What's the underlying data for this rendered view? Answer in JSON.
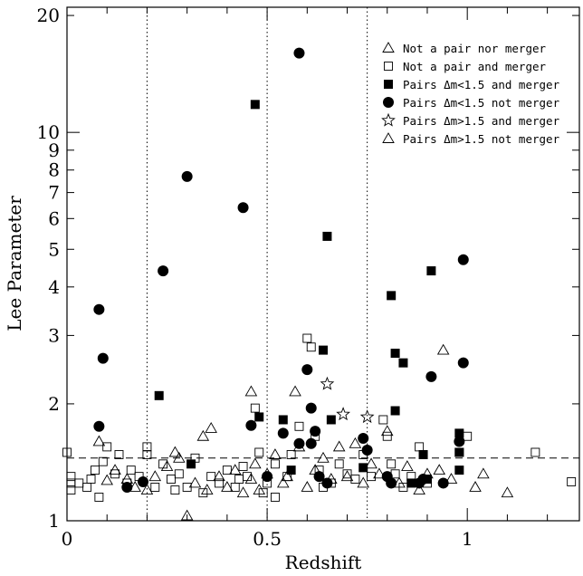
{
  "chart_data": {
    "type": "scatter",
    "xlabel": "Redshift",
    "ylabel": "Lee Parameter",
    "xlim": [
      0,
      1.28
    ],
    "ylim": [
      1,
      21
    ],
    "yscale": "log",
    "x_ticks": [
      {
        "value": 0,
        "label": "0"
      },
      {
        "value": 0.5,
        "label": "0.5"
      },
      {
        "value": 1,
        "label": "1"
      }
    ],
    "y_ticks": [
      {
        "value": 1,
        "label": "1"
      },
      {
        "value": 2,
        "label": "2"
      },
      {
        "value": 3,
        "label": "3"
      },
      {
        "value": 4,
        "label": "4"
      },
      {
        "value": 5,
        "label": "5"
      },
      {
        "value": 6,
        "label": "6"
      },
      {
        "value": 7,
        "label": "7"
      },
      {
        "value": 8,
        "label": "8"
      },
      {
        "value": 9,
        "label": "9"
      },
      {
        "value": 10,
        "label": "10"
      },
      {
        "value": 20,
        "label": "20"
      }
    ],
    "vertical_lines": [
      0.2,
      0.5,
      0.75
    ],
    "horizontal_line": 1.45,
    "legend_position": "top-right",
    "series": [
      {
        "name": "Not a pair nor merger",
        "marker": "triangle-open",
        "points": [
          [
            0.08,
            1.6
          ],
          [
            0.1,
            1.27
          ],
          [
            0.12,
            1.35
          ],
          [
            0.15,
            1.28
          ],
          [
            0.17,
            1.22
          ],
          [
            0.2,
            1.2
          ],
          [
            0.22,
            1.3
          ],
          [
            0.25,
            1.38
          ],
          [
            0.27,
            1.5
          ],
          [
            0.28,
            1.45
          ],
          [
            0.3,
            1.03
          ],
          [
            0.32,
            1.25
          ],
          [
            0.34,
            1.65
          ],
          [
            0.36,
            1.73
          ],
          [
            0.38,
            1.3
          ],
          [
            0.4,
            1.22
          ],
          [
            0.42,
            1.35
          ],
          [
            0.44,
            1.18
          ],
          [
            0.46,
            1.28
          ],
          [
            0.47,
            1.4
          ],
          [
            0.48,
            1.2
          ],
          [
            0.5,
            1.32
          ],
          [
            0.52,
            1.48
          ],
          [
            0.54,
            1.25
          ],
          [
            0.55,
            1.3
          ],
          [
            0.57,
            2.15
          ],
          [
            0.58,
            1.55
          ],
          [
            0.6,
            1.22
          ],
          [
            0.62,
            1.35
          ],
          [
            0.64,
            1.45
          ],
          [
            0.66,
            1.28
          ],
          [
            0.68,
            1.55
          ],
          [
            0.7,
            1.3
          ],
          [
            0.72,
            1.58
          ],
          [
            0.74,
            1.25
          ],
          [
            0.76,
            1.4
          ],
          [
            0.78,
            1.32
          ],
          [
            0.8,
            1.7
          ],
          [
            0.83,
            1.25
          ],
          [
            0.85,
            1.38
          ],
          [
            0.88,
            1.2
          ],
          [
            0.9,
            1.32
          ],
          [
            0.93,
            1.35
          ],
          [
            0.94,
            2.75
          ],
          [
            0.96,
            1.28
          ],
          [
            1.02,
            1.22
          ],
          [
            1.04,
            1.32
          ],
          [
            1.1,
            1.18
          ],
          [
            0.46,
            2.15
          ],
          [
            0.35,
            1.2
          ]
        ]
      },
      {
        "name": "Not a pair and merger",
        "marker": "square-open",
        "points": [
          [
            0.0,
            1.5
          ],
          [
            0.01,
            1.3
          ],
          [
            0.01,
            1.2
          ],
          [
            0.01,
            1.25
          ],
          [
            0.03,
            1.25
          ],
          [
            0.05,
            1.22
          ],
          [
            0.06,
            1.28
          ],
          [
            0.07,
            1.35
          ],
          [
            0.08,
            1.15
          ],
          [
            0.09,
            1.42
          ],
          [
            0.1,
            1.55
          ],
          [
            0.12,
            1.32
          ],
          [
            0.13,
            1.48
          ],
          [
            0.15,
            1.25
          ],
          [
            0.16,
            1.35
          ],
          [
            0.18,
            1.3
          ],
          [
            0.2,
            1.55
          ],
          [
            0.2,
            1.48
          ],
          [
            0.22,
            1.22
          ],
          [
            0.24,
            1.4
          ],
          [
            0.26,
            1.28
          ],
          [
            0.28,
            1.32
          ],
          [
            0.3,
            1.22
          ],
          [
            0.32,
            1.45
          ],
          [
            0.34,
            1.18
          ],
          [
            0.36,
            1.3
          ],
          [
            0.38,
            1.25
          ],
          [
            0.4,
            1.35
          ],
          [
            0.42,
            1.22
          ],
          [
            0.44,
            1.38
          ],
          [
            0.45,
            1.3
          ],
          [
            0.47,
            1.95
          ],
          [
            0.48,
            1.5
          ],
          [
            0.49,
            1.18
          ],
          [
            0.5,
            1.25
          ],
          [
            0.52,
            1.4
          ],
          [
            0.55,
            1.3
          ],
          [
            0.56,
            1.48
          ],
          [
            0.58,
            1.75
          ],
          [
            0.6,
            2.95
          ],
          [
            0.61,
            2.8
          ],
          [
            0.62,
            1.65
          ],
          [
            0.63,
            1.35
          ],
          [
            0.64,
            1.22
          ],
          [
            0.66,
            1.25
          ],
          [
            0.68,
            1.4
          ],
          [
            0.7,
            1.32
          ],
          [
            0.72,
            1.28
          ],
          [
            0.74,
            1.48
          ],
          [
            0.76,
            1.3
          ],
          [
            0.79,
            1.82
          ],
          [
            0.8,
            1.65
          ],
          [
            0.81,
            1.4
          ],
          [
            0.82,
            1.32
          ],
          [
            0.84,
            1.22
          ],
          [
            0.86,
            1.3
          ],
          [
            0.88,
            1.55
          ],
          [
            0.9,
            1.25
          ],
          [
            0.98,
            1.5
          ],
          [
            1.0,
            1.65
          ],
          [
            1.17,
            1.5
          ],
          [
            1.26,
            1.26
          ],
          [
            0.27,
            1.2
          ],
          [
            0.43,
            1.28
          ],
          [
            0.52,
            1.15
          ]
        ]
      },
      {
        "name": "Pairs Δm<1.5 and merger",
        "marker": "square-filled",
        "points": [
          [
            0.23,
            2.1
          ],
          [
            0.31,
            1.4
          ],
          [
            0.47,
            11.8
          ],
          [
            0.48,
            1.85
          ],
          [
            0.54,
            1.82
          ],
          [
            0.56,
            1.35
          ],
          [
            0.64,
            2.75
          ],
          [
            0.65,
            5.4
          ],
          [
            0.66,
            1.82
          ],
          [
            0.74,
            1.37
          ],
          [
            0.81,
            3.8
          ],
          [
            0.82,
            2.7
          ],
          [
            0.82,
            1.92
          ],
          [
            0.84,
            2.55
          ],
          [
            0.86,
            1.25
          ],
          [
            0.89,
            1.48
          ],
          [
            0.9,
            1.28
          ],
          [
            0.91,
            4.4
          ],
          [
            0.98,
            1.68
          ],
          [
            0.98,
            1.5
          ],
          [
            0.98,
            1.35
          ]
        ]
      },
      {
        "name": "Pairs Δm<1.5 not merger",
        "marker": "circle-filled",
        "points": [
          [
            0.08,
            3.5
          ],
          [
            0.09,
            2.62
          ],
          [
            0.08,
            1.75
          ],
          [
            0.15,
            1.22
          ],
          [
            0.19,
            1.26
          ],
          [
            0.24,
            4.4
          ],
          [
            0.3,
            7.7
          ],
          [
            0.44,
            6.4
          ],
          [
            0.46,
            1.76
          ],
          [
            0.5,
            1.3
          ],
          [
            0.54,
            1.68
          ],
          [
            0.58,
            16.0
          ],
          [
            0.58,
            1.58
          ],
          [
            0.6,
            2.45
          ],
          [
            0.61,
            1.95
          ],
          [
            0.61,
            1.58
          ],
          [
            0.62,
            1.7
          ],
          [
            0.63,
            1.3
          ],
          [
            0.65,
            1.25
          ],
          [
            0.74,
            1.63
          ],
          [
            0.75,
            1.52
          ],
          [
            0.8,
            1.3
          ],
          [
            0.81,
            1.25
          ],
          [
            0.88,
            1.25
          ],
          [
            0.91,
            2.35
          ],
          [
            0.94,
            1.25
          ],
          [
            0.99,
            4.7
          ],
          [
            0.99,
            2.55
          ],
          [
            0.98,
            1.6
          ],
          [
            0.89,
            1.28
          ]
        ]
      },
      {
        "name": "Pairs Δm>1.5 and merger",
        "marker": "star-open",
        "points": [
          [
            0.65,
            2.25
          ],
          [
            0.69,
            1.88
          ],
          [
            0.75,
            1.85
          ]
        ]
      },
      {
        "name": "Pairs Δm>1.5 not merger",
        "marker": "triangle-open",
        "points": []
      }
    ]
  }
}
